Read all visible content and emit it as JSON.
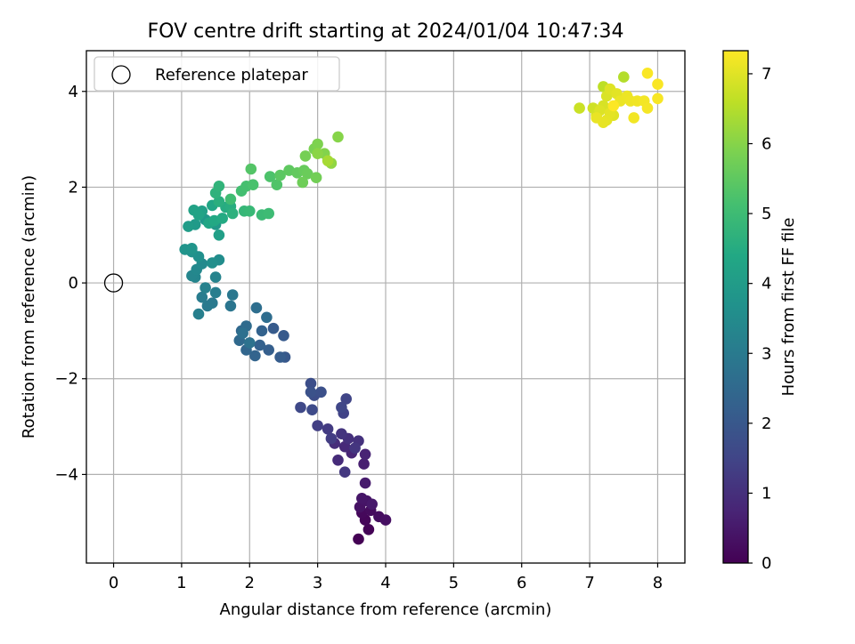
{
  "chart_data": {
    "type": "scatter",
    "title": "FOV centre drift starting at 2024/01/04 10:47:34",
    "xlabel": "Angular distance from reference (arcmin)",
    "ylabel": "Rotation from reference (arcmin)",
    "xlim": [
      -0.4,
      8.4
    ],
    "ylim": [
      -5.85,
      4.85
    ],
    "xticks": [
      0,
      1,
      2,
      3,
      4,
      5,
      6,
      7,
      8
    ],
    "yticks": [
      -4,
      -2,
      0,
      2,
      4
    ],
    "grid": true,
    "legend": {
      "placement": "top-left",
      "entries": [
        "Reference platepar"
      ]
    },
    "reference_point": {
      "name": "Reference platepar",
      "x": 0,
      "y": 0
    },
    "colorbar": {
      "label": "Hours from first FF file",
      "colormap": "viridis",
      "range": [
        0,
        7.33
      ],
      "ticks": [
        0,
        1,
        2,
        3,
        4,
        5,
        6,
        7
      ]
    },
    "series": [
      {
        "points": [
          [
            3.6,
            -5.35,
            0.0
          ],
          [
            3.75,
            -5.15,
            0.05
          ],
          [
            3.7,
            -4.95,
            0.1
          ],
          [
            3.65,
            -4.8,
            0.15
          ],
          [
            3.78,
            -4.75,
            0.2
          ],
          [
            3.9,
            -4.88,
            0.25
          ],
          [
            4.0,
            -4.95,
            0.3
          ],
          [
            3.62,
            -4.68,
            0.35
          ],
          [
            3.72,
            -4.55,
            0.4
          ],
          [
            3.65,
            -4.5,
            0.45
          ],
          [
            3.8,
            -4.62,
            0.5
          ],
          [
            3.7,
            -4.18,
            0.55
          ],
          [
            3.68,
            -3.78,
            0.65
          ],
          [
            3.7,
            -3.58,
            0.72
          ],
          [
            3.5,
            -3.55,
            0.78
          ],
          [
            3.4,
            -3.42,
            0.85
          ],
          [
            3.3,
            -3.7,
            0.9
          ],
          [
            3.25,
            -3.35,
            0.95
          ],
          [
            3.45,
            -3.25,
            1.0
          ],
          [
            3.6,
            -3.3,
            1.05
          ],
          [
            3.35,
            -3.15,
            1.1
          ],
          [
            3.55,
            -3.45,
            1.15
          ],
          [
            3.4,
            -3.95,
            1.2
          ],
          [
            3.15,
            -3.05,
            1.25
          ],
          [
            3.2,
            -3.25,
            1.3
          ],
          [
            3.0,
            -2.98,
            1.35
          ],
          [
            3.38,
            -2.72,
            1.45
          ],
          [
            3.42,
            -2.42,
            1.5
          ],
          [
            3.35,
            -2.6,
            1.55
          ],
          [
            2.75,
            -2.6,
            1.6
          ],
          [
            2.92,
            -2.65,
            1.65
          ],
          [
            2.95,
            -2.35,
            1.7
          ],
          [
            2.9,
            -2.1,
            1.75
          ],
          [
            3.05,
            -2.28,
            1.8
          ],
          [
            2.9,
            -2.28,
            1.85
          ],
          [
            2.52,
            -1.55,
            2.0
          ],
          [
            2.5,
            -1.1,
            2.05
          ],
          [
            2.35,
            -0.95,
            2.1
          ],
          [
            2.45,
            -1.55,
            2.15
          ],
          [
            2.28,
            -1.4,
            2.2
          ],
          [
            2.15,
            -1.3,
            2.25
          ],
          [
            2.18,
            -1.0,
            2.3
          ],
          [
            2.08,
            -1.52,
            2.35
          ],
          [
            1.95,
            -1.4,
            2.4
          ],
          [
            1.88,
            -1.0,
            2.45
          ],
          [
            1.85,
            -1.2,
            2.5
          ],
          [
            1.95,
            -0.9,
            2.55
          ],
          [
            2.25,
            -0.72,
            2.6
          ],
          [
            2.1,
            -0.52,
            2.65
          ],
          [
            1.9,
            -1.05,
            2.7
          ],
          [
            2.0,
            -1.25,
            2.75
          ],
          [
            1.72,
            -0.48,
            2.85
          ],
          [
            1.75,
            -0.25,
            2.9
          ],
          [
            1.45,
            -0.42,
            2.95
          ],
          [
            1.38,
            -0.48,
            3.0
          ],
          [
            1.3,
            -0.3,
            3.05
          ],
          [
            1.5,
            -0.2,
            3.1
          ],
          [
            1.25,
            -0.65,
            3.15
          ],
          [
            1.35,
            -0.1,
            3.2
          ],
          [
            1.5,
            0.12,
            3.25
          ],
          [
            1.2,
            0.12,
            3.3
          ],
          [
            1.15,
            0.15,
            3.35
          ],
          [
            1.22,
            0.28,
            3.4
          ],
          [
            1.3,
            0.4,
            3.45
          ],
          [
            1.55,
            0.48,
            3.55
          ],
          [
            1.45,
            0.42,
            3.6
          ],
          [
            1.25,
            0.55,
            3.65
          ],
          [
            1.15,
            0.65,
            3.7
          ],
          [
            1.05,
            0.7,
            3.75
          ],
          [
            1.15,
            0.72,
            3.8
          ],
          [
            1.35,
            1.32,
            3.85
          ],
          [
            1.5,
            1.22,
            3.9
          ],
          [
            1.2,
            1.22,
            3.95
          ],
          [
            1.1,
            1.18,
            4.0
          ],
          [
            1.55,
            1.0,
            4.1
          ],
          [
            1.3,
            1.5,
            4.15
          ],
          [
            1.18,
            1.52,
            4.2
          ],
          [
            1.25,
            1.42,
            4.25
          ],
          [
            1.4,
            1.25,
            4.3
          ],
          [
            1.45,
            1.62,
            4.35
          ],
          [
            1.48,
            1.3,
            4.4
          ],
          [
            1.6,
            1.35,
            4.45
          ],
          [
            1.65,
            1.58,
            4.5
          ],
          [
            1.72,
            1.6,
            4.55
          ],
          [
            1.55,
            1.7,
            4.6
          ],
          [
            1.75,
            1.45,
            4.65
          ],
          [
            1.5,
            1.88,
            4.7
          ],
          [
            1.55,
            2.02,
            4.75
          ],
          [
            1.92,
            1.5,
            4.85
          ],
          [
            2.0,
            1.5,
            4.9
          ],
          [
            2.18,
            1.42,
            4.95
          ],
          [
            2.28,
            1.45,
            5.0
          ],
          [
            1.72,
            1.75,
            5.05
          ],
          [
            1.88,
            1.92,
            5.1
          ],
          [
            1.95,
            2.02,
            5.15
          ],
          [
            2.05,
            2.05,
            5.2
          ],
          [
            2.3,
            2.22,
            5.25
          ],
          [
            2.4,
            2.05,
            5.3
          ],
          [
            2.02,
            2.38,
            5.35
          ],
          [
            2.45,
            2.25,
            5.45
          ],
          [
            2.58,
            2.35,
            5.5
          ],
          [
            2.7,
            2.3,
            5.55
          ],
          [
            2.8,
            2.35,
            5.6
          ],
          [
            2.85,
            2.28,
            5.65
          ],
          [
            2.78,
            2.1,
            5.7
          ],
          [
            2.98,
            2.2,
            5.75
          ],
          [
            2.82,
            2.65,
            5.8
          ],
          [
            2.95,
            2.8,
            5.85
          ],
          [
            3.0,
            2.9,
            5.9
          ],
          [
            3.1,
            2.7,
            5.95
          ],
          [
            3.3,
            3.05,
            6.0
          ],
          [
            3.0,
            2.7,
            6.05
          ],
          [
            3.2,
            2.5,
            6.1
          ],
          [
            3.15,
            2.55,
            6.35
          ],
          [
            7.5,
            4.3,
            6.5
          ],
          [
            7.2,
            4.1,
            6.6
          ],
          [
            6.85,
            3.65,
            6.75
          ],
          [
            7.05,
            3.65,
            6.8
          ],
          [
            7.1,
            3.5,
            6.85
          ],
          [
            7.2,
            3.7,
            6.9
          ],
          [
            7.25,
            3.9,
            6.92
          ],
          [
            7.15,
            3.6,
            6.95
          ],
          [
            7.3,
            4.05,
            6.97
          ],
          [
            7.35,
            3.5,
            7.0
          ],
          [
            7.4,
            3.95,
            7.02
          ],
          [
            7.3,
            3.55,
            7.04
          ],
          [
            7.25,
            3.4,
            7.06
          ],
          [
            7.2,
            3.35,
            7.08
          ],
          [
            7.1,
            3.45,
            7.1
          ],
          [
            7.45,
            3.8,
            7.12
          ],
          [
            7.55,
            3.9,
            7.14
          ],
          [
            7.6,
            3.8,
            7.16
          ],
          [
            7.7,
            3.8,
            7.18
          ],
          [
            7.65,
            3.45,
            7.2
          ],
          [
            7.8,
            3.8,
            7.22
          ],
          [
            7.85,
            3.65,
            7.24
          ],
          [
            8.0,
            3.85,
            7.26
          ],
          [
            8.0,
            4.15,
            7.28
          ],
          [
            7.85,
            4.38,
            7.3
          ],
          [
            7.35,
            3.7,
            7.32
          ]
        ]
      }
    ]
  }
}
